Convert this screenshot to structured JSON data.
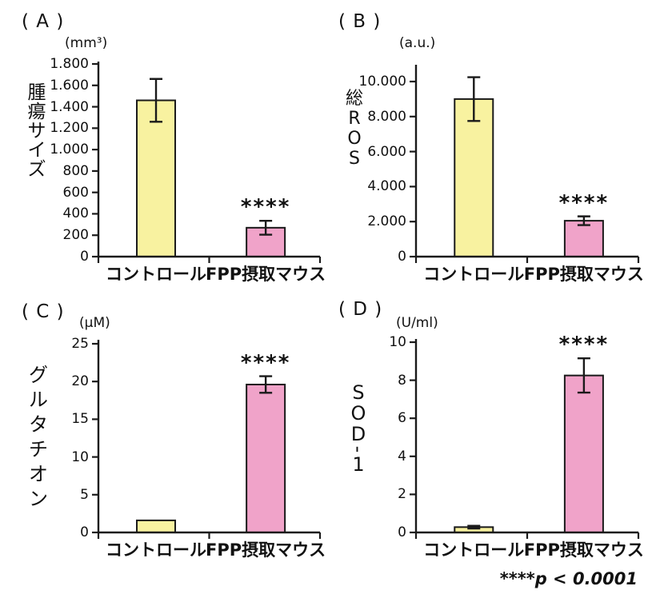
{
  "figure": {
    "background": "#ffffff",
    "footnote": "****p < 0.0001"
  },
  "colors": {
    "control_fill": "#F8F2A0",
    "fpp_fill": "#F0A3C9",
    "stroke": "#1a1a1a"
  },
  "chart_data": [
    {
      "type": "bar",
      "panel": "A",
      "panel_label": "( A )",
      "unit": "(mm³)",
      "ylabel": "腫瘍サイズ",
      "categories": [
        "コントロール",
        "FPP摂取マウス"
      ],
      "values": [
        1460,
        270
      ],
      "errors": [
        200,
        65
      ],
      "significance": [
        "",
        "****"
      ],
      "ylim": [
        0,
        1800
      ],
      "ytick_values": [
        0,
        200,
        400,
        600,
        800,
        1000,
        1200,
        1400,
        1600,
        1800
      ],
      "ytick_labels": [
        "0",
        "200",
        "400",
        "600",
        "800",
        "1.000",
        "1.200",
        "1.400",
        "1.600",
        "1.800"
      ],
      "legend": "none",
      "grid": false
    },
    {
      "type": "bar",
      "panel": "B",
      "panel_label": "( B )",
      "unit": "(a.u.)",
      "ylabel": "総ROS",
      "categories": [
        "コントロール",
        "FPP摂取マウス"
      ],
      "values": [
        9000,
        2050
      ],
      "errors": [
        1250,
        250
      ],
      "significance": [
        "",
        "****"
      ],
      "ylim": [
        0,
        10000
      ],
      "ytick_values": [
        0,
        2000,
        4000,
        6000,
        8000,
        10000
      ],
      "ytick_labels": [
        "0",
        "2.000",
        "4.000",
        "6.000",
        "8.000",
        "10.000"
      ],
      "legend": "none",
      "grid": false
    },
    {
      "type": "bar",
      "panel": "C",
      "panel_label": "( C )",
      "unit": "(μM)",
      "ylabel": "グルタチオン",
      "categories": [
        "コントロール",
        "FPP摂取マウス"
      ],
      "values": [
        1.6,
        19.6
      ],
      "errors": [
        0,
        1.1
      ],
      "significance": [
        "",
        "****"
      ],
      "ylim": [
        0,
        25
      ],
      "ytick_values": [
        0,
        5,
        10,
        15,
        20,
        25
      ],
      "ytick_labels": [
        "0",
        "5",
        "10",
        "15",
        "20",
        "25"
      ],
      "legend": "none",
      "grid": false
    },
    {
      "type": "bar",
      "panel": "D",
      "panel_label": "( D )",
      "unit": "(U/ml)",
      "ylabel": "SOD-1",
      "categories": [
        "コントロール",
        "FPP摂取マウス"
      ],
      "values": [
        0.28,
        8.25
      ],
      "errors": [
        0.07,
        0.9
      ],
      "significance": [
        "",
        "****"
      ],
      "ylim": [
        0,
        10
      ],
      "ytick_values": [
        0,
        2,
        4,
        6,
        8,
        10
      ],
      "ytick_labels": [
        "0",
        "2",
        "4",
        "6",
        "8",
        "10"
      ],
      "legend": "none",
      "grid": false
    }
  ]
}
